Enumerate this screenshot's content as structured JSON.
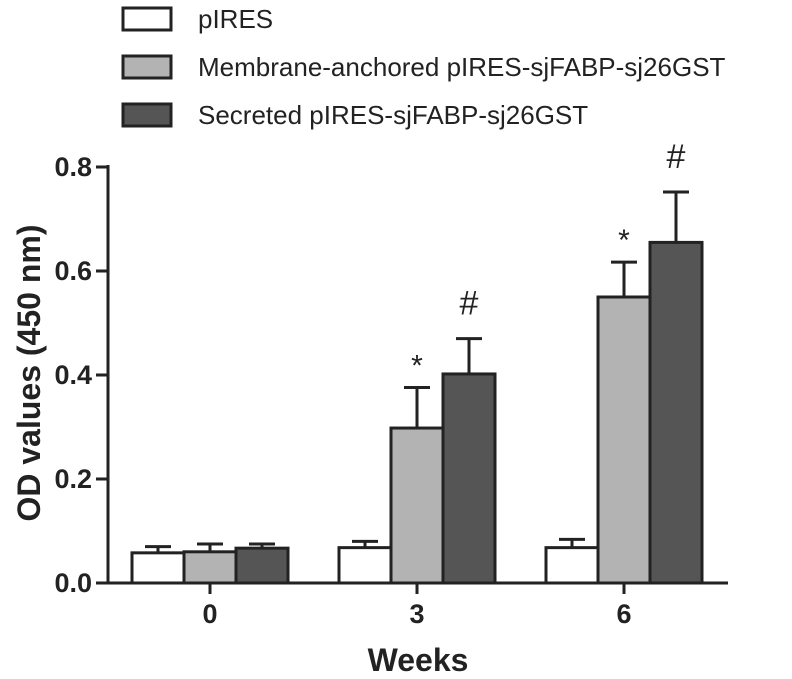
{
  "chart_data": {
    "type": "bar",
    "xlabel": "Weeks",
    "ylabel": "OD values (450 nm)",
    "categories": [
      "0",
      "3",
      "6"
    ],
    "ylim": [
      0,
      0.8
    ],
    "yticks": [
      "0.0",
      "0.2",
      "0.4",
      "0.6",
      "0.8"
    ],
    "ytick_values": [
      0,
      0.2,
      0.4,
      0.6,
      0.8
    ],
    "grid": false,
    "legend_position": "top",
    "series": [
      {
        "name": "pIRES",
        "color": "#ffffff",
        "values": [
          0.058,
          0.068,
          0.068
        ],
        "errors": [
          0.012,
          0.012,
          0.016
        ],
        "annotations": [
          "",
          "",
          ""
        ]
      },
      {
        "name": "Membrane-anchored pIRES-sjFABP-sj26GST",
        "color": "#b3b3b3",
        "values": [
          0.06,
          0.298,
          0.55
        ],
        "errors": [
          0.015,
          0.078,
          0.067
        ],
        "annotations": [
          "",
          "*",
          "*"
        ]
      },
      {
        "name": "Secreted pIRES-sjFABP-sj26GST",
        "color": "#555555",
        "values": [
          0.067,
          0.402,
          0.655
        ],
        "errors": [
          0.008,
          0.068,
          0.097
        ],
        "annotations": [
          "",
          "#",
          "#"
        ]
      }
    ]
  }
}
